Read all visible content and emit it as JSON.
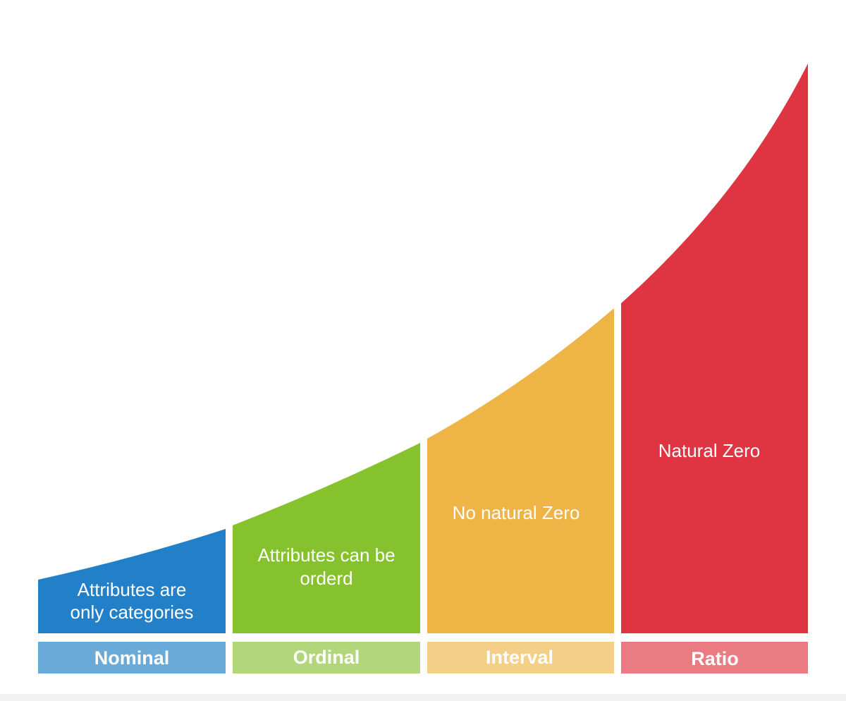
{
  "diagram": {
    "levels": [
      {
        "name": "Nominal",
        "description": [
          "Attributes are",
          "only categories"
        ],
        "color": "#2280c8",
        "label_color": "#6aaad8"
      },
      {
        "name": "Ordinal",
        "description": [
          "Attributes can be",
          "orderd"
        ],
        "color": "#86c12e",
        "label_color": "#b2d67a"
      },
      {
        "name": "Interval",
        "description": [
          "No natural Zero"
        ],
        "color": "#eeb446",
        "label_color": "#f4cf88"
      },
      {
        "name": "Ratio",
        "description": [
          "Natural Zero"
        ],
        "color": "#df3441",
        "label_color": "#ea7b82"
      }
    ]
  }
}
